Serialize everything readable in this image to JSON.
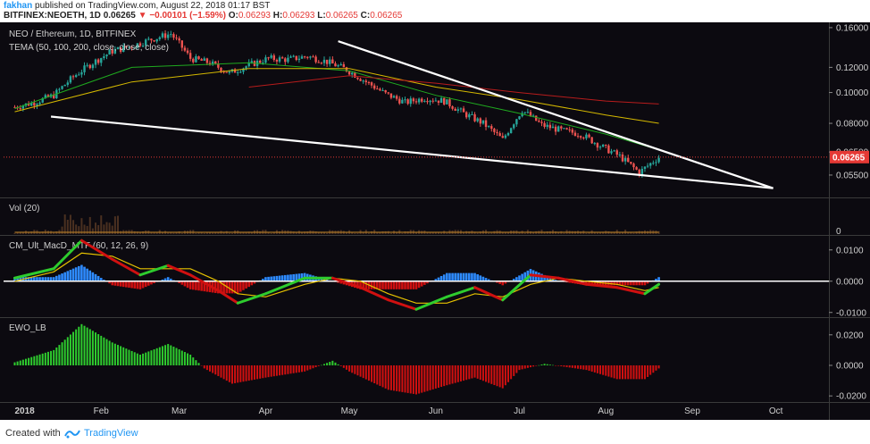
{
  "header": {
    "user": "fakhan",
    "published_text": "published on TradingView.com, August 22, 2018 01:17 BST",
    "symbol_line": "BITFINEX:NEOETH, 1D",
    "last": "0.06265",
    "change": "−0.00101 (−1.59%)",
    "o_label": "O:",
    "o_value": "0.06293",
    "h_label": "H:",
    "h_value": "0.06293",
    "l_label": "L:",
    "l_value": "0.06265",
    "c_label": "C:",
    "c_value": "0.06265"
  },
  "footer": {
    "created_with": "Created with",
    "brand": "TradingView"
  },
  "colors": {
    "background": "#0c0a10",
    "up": "#26a69a",
    "down": "#ef5350",
    "tema50": "#1faa1f",
    "tema100": "#d4b800",
    "tema200": "#b71c1c",
    "trendline": "#ffffff",
    "volume": "#4a3020",
    "macd_up": "#2e8bff",
    "macd_down": "#d01010",
    "ewo_up": "#2ecc2e",
    "ewo_down": "#d01010",
    "price_tag": "#e53935"
  },
  "chart_data": [
    {
      "type": "candlestick",
      "title": "NEO / Ethereum, 1D, BITFINEX",
      "subtitle": "TEMA (50, 100, 200, close, close, close)",
      "x_ticks": [
        "2018",
        "Feb",
        "Mar",
        "Apr",
        "May",
        "Jun",
        "Jul",
        "Aug",
        "Sep",
        "Oct"
      ],
      "y_ticks": [
        "0.16000",
        "0.12000",
        "0.10000",
        "0.08000",
        "0.06500",
        "0.05500"
      ],
      "y_tick_values": [
        0.16,
        0.12,
        0.1,
        0.08,
        0.065,
        0.055
      ],
      "ylim": [
        0.048,
        0.162
      ],
      "scale": "log",
      "last_price_label": "0.06265",
      "last_price": 0.06265,
      "ohlc_points": [
        [
          "2018-01-01",
          0.09
        ],
        [
          "2018-01-08",
          0.093
        ],
        [
          "2018-01-15",
          0.098
        ],
        [
          "2018-01-22",
          0.112
        ],
        [
          "2018-01-29",
          0.124
        ],
        [
          "2018-02-05",
          0.135
        ],
        [
          "2018-02-12",
          0.14
        ],
        [
          "2018-02-19",
          0.147
        ],
        [
          "2018-02-26",
          0.153
        ],
        [
          "2018-03-05",
          0.128
        ],
        [
          "2018-03-12",
          0.124
        ],
        [
          "2018-03-19",
          0.115
        ],
        [
          "2018-03-26",
          0.122
        ],
        [
          "2018-04-02",
          0.128
        ],
        [
          "2018-04-09",
          0.127
        ],
        [
          "2018-04-16",
          0.13
        ],
        [
          "2018-04-23",
          0.125
        ],
        [
          "2018-04-30",
          0.118
        ],
        [
          "2018-05-07",
          0.108
        ],
        [
          "2018-05-14",
          0.099
        ],
        [
          "2018-05-21",
          0.093
        ],
        [
          "2018-05-28",
          0.096
        ],
        [
          "2018-06-04",
          0.094
        ],
        [
          "2018-06-11",
          0.086
        ],
        [
          "2018-06-18",
          0.08
        ],
        [
          "2018-06-25",
          0.071
        ],
        [
          "2018-07-02",
          0.088
        ],
        [
          "2018-07-09",
          0.079
        ],
        [
          "2018-07-16",
          0.076
        ],
        [
          "2018-07-23",
          0.074
        ],
        [
          "2018-07-30",
          0.068
        ],
        [
          "2018-08-06",
          0.063
        ],
        [
          "2018-08-13",
          0.056
        ],
        [
          "2018-08-20",
          0.0626
        ]
      ],
      "series": [
        {
          "name": "TEMA 50",
          "points": [
            [
              "2018-01-01",
              0.089
            ],
            [
              "2018-02-12",
              0.12
            ],
            [
              "2018-03-26",
              0.124
            ],
            [
              "2018-05-01",
              0.117
            ],
            [
              "2018-06-01",
              0.098
            ],
            [
              "2018-07-01",
              0.086
            ],
            [
              "2018-08-01",
              0.074
            ],
            [
              "2018-08-20",
              0.066
            ]
          ]
        },
        {
          "name": "TEMA 100",
          "points": [
            [
              "2018-01-01",
              0.087
            ],
            [
              "2018-02-12",
              0.108
            ],
            [
              "2018-03-26",
              0.119
            ],
            [
              "2018-05-01",
              0.119
            ],
            [
              "2018-06-01",
              0.104
            ],
            [
              "2018-07-01",
              0.095
            ],
            [
              "2018-08-01",
              0.085
            ],
            [
              "2018-08-20",
              0.08
            ]
          ]
        },
        {
          "name": "TEMA 200",
          "points": [
            [
              "2018-03-26",
              0.104
            ],
            [
              "2018-05-01",
              0.113
            ],
            [
              "2018-06-01",
              0.107
            ],
            [
              "2018-07-01",
              0.1
            ],
            [
              "2018-08-01",
              0.094
            ],
            [
              "2018-08-20",
              0.092
            ]
          ]
        }
      ],
      "trendlines": [
        {
          "name": "upper",
          "points": [
            [
              "2018-04-27",
              0.145
            ],
            [
              "2018-09-30",
              0.05
            ]
          ]
        },
        {
          "name": "lower",
          "points": [
            [
              "2018-01-14",
              0.084
            ],
            [
              "2018-09-30",
              0.05
            ]
          ]
        }
      ]
    },
    {
      "type": "bar",
      "title": "Vol (20)",
      "y_ticks": [
        "0"
      ],
      "values_note": "small daily volume bars; spike near late January"
    },
    {
      "type": "histogram+line",
      "title": "CM_Ult_MacD_MTF (60, 12, 26, 9)",
      "y_ticks": [
        "0.0100",
        "0.0000",
        "-0.0100"
      ],
      "y_tick_values": [
        0.01,
        0.0,
        -0.01
      ],
      "ylim": [
        -0.0115,
        0.0145
      ],
      "macd": [
        [
          "2018-01-01",
          0.001
        ],
        [
          "2018-01-15",
          0.004
        ],
        [
          "2018-01-25",
          0.013
        ],
        [
          "2018-02-05",
          0.007
        ],
        [
          "2018-02-15",
          0.002
        ],
        [
          "2018-02-25",
          0.005
        ],
        [
          "2018-03-05",
          0.002
        ],
        [
          "2018-03-15",
          -0.003
        ],
        [
          "2018-03-22",
          -0.007
        ],
        [
          "2018-04-01",
          -0.004
        ],
        [
          "2018-04-15",
          0.001
        ],
        [
          "2018-04-25",
          0.001
        ],
        [
          "2018-05-05",
          -0.002
        ],
        [
          "2018-05-15",
          -0.006
        ],
        [
          "2018-05-25",
          -0.009
        ],
        [
          "2018-06-05",
          -0.005
        ],
        [
          "2018-06-15",
          -0.002
        ],
        [
          "2018-06-25",
          -0.006
        ],
        [
          "2018-07-05",
          0.002
        ],
        [
          "2018-07-15",
          0.001
        ],
        [
          "2018-07-25",
          -0.001
        ],
        [
          "2018-08-05",
          -0.002
        ],
        [
          "2018-08-15",
          -0.004
        ],
        [
          "2018-08-20",
          -0.001
        ]
      ],
      "signal": [
        [
          "2018-01-01",
          0.0
        ],
        [
          "2018-01-15",
          0.003
        ],
        [
          "2018-01-25",
          0.009
        ],
        [
          "2018-02-05",
          0.008
        ],
        [
          "2018-02-15",
          0.004
        ],
        [
          "2018-02-25",
          0.004
        ],
        [
          "2018-03-05",
          0.004
        ],
        [
          "2018-03-15",
          0.0
        ],
        [
          "2018-03-22",
          -0.004
        ],
        [
          "2018-04-01",
          -0.005
        ],
        [
          "2018-04-15",
          -0.001
        ],
        [
          "2018-04-25",
          0.001
        ],
        [
          "2018-05-05",
          0.0
        ],
        [
          "2018-05-15",
          -0.004
        ],
        [
          "2018-05-25",
          -0.007
        ],
        [
          "2018-06-05",
          -0.007
        ],
        [
          "2018-06-15",
          -0.004
        ],
        [
          "2018-06-25",
          -0.005
        ],
        [
          "2018-07-05",
          -0.001
        ],
        [
          "2018-07-15",
          0.001
        ],
        [
          "2018-07-25",
          0.0
        ],
        [
          "2018-08-05",
          -0.001
        ],
        [
          "2018-08-15",
          -0.003
        ],
        [
          "2018-08-20",
          -0.002
        ]
      ]
    },
    {
      "type": "histogram",
      "title": "EWO_LB",
      "y_ticks": [
        "0.0200",
        "0.0000",
        "-0.0200"
      ],
      "y_tick_values": [
        0.02,
        0.0,
        -0.02
      ],
      "ylim": [
        -0.024,
        0.031
      ],
      "values": [
        [
          "2018-01-01",
          0.002
        ],
        [
          "2018-01-15",
          0.01
        ],
        [
          "2018-01-25",
          0.027
        ],
        [
          "2018-02-05",
          0.015
        ],
        [
          "2018-02-15",
          0.007
        ],
        [
          "2018-02-25",
          0.014
        ],
        [
          "2018-03-05",
          0.007
        ],
        [
          "2018-03-10",
          -0.002
        ],
        [
          "2018-03-20",
          -0.012
        ],
        [
          "2018-04-01",
          -0.008
        ],
        [
          "2018-04-15",
          -0.004
        ],
        [
          "2018-04-25",
          0.003
        ],
        [
          "2018-05-01",
          -0.004
        ],
        [
          "2018-05-15",
          -0.016
        ],
        [
          "2018-05-25",
          -0.019
        ],
        [
          "2018-06-05",
          -0.013
        ],
        [
          "2018-06-15",
          -0.008
        ],
        [
          "2018-06-25",
          -0.015
        ],
        [
          "2018-07-01",
          -0.003
        ],
        [
          "2018-07-10",
          0.001
        ],
        [
          "2018-07-25",
          -0.003
        ],
        [
          "2018-08-05",
          -0.009
        ],
        [
          "2018-08-15",
          -0.009
        ],
        [
          "2018-08-20",
          -0.002
        ]
      ]
    }
  ]
}
